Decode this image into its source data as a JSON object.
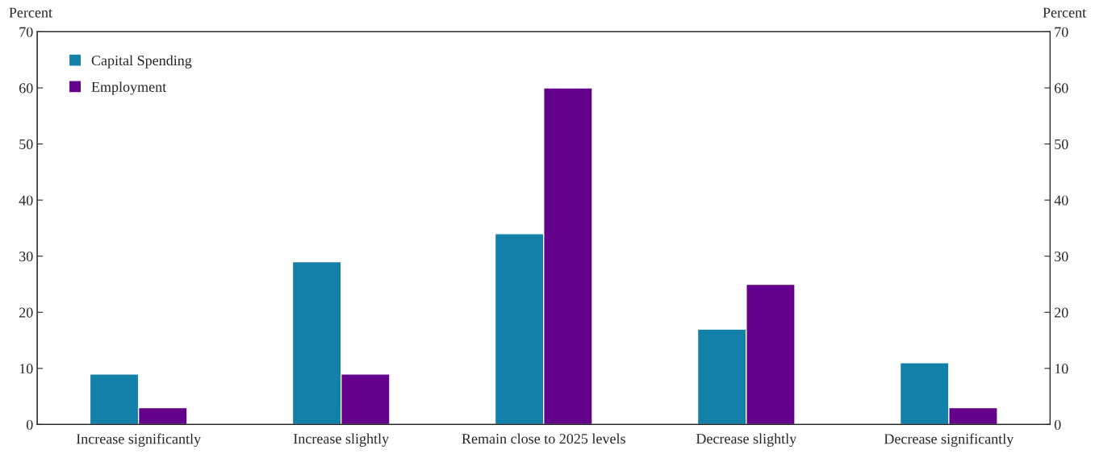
{
  "chart_data": {
    "type": "bar",
    "ylabel": "Percent",
    "y2label": "Percent",
    "categories": [
      "Increase significantly",
      "Increase slightly",
      "Remain close to 2025 levels",
      "Decrease slightly",
      "Decrease significantly"
    ],
    "series": [
      {
        "name": "Capital Spending",
        "color": "#1380a9",
        "values": [
          9,
          29,
          34,
          17,
          11
        ]
      },
      {
        "name": "Employment",
        "color": "#63008c",
        "values": [
          3,
          9,
          60,
          25,
          3
        ]
      }
    ],
    "ylim": [
      0,
      70
    ],
    "yticks": [
      0,
      10,
      20,
      30,
      40,
      50,
      60,
      70
    ],
    "y2lim": [
      0,
      70
    ],
    "y2ticks": [
      0,
      10,
      20,
      30,
      40,
      50,
      60,
      70
    ],
    "grid": false,
    "legend": "top left"
  }
}
